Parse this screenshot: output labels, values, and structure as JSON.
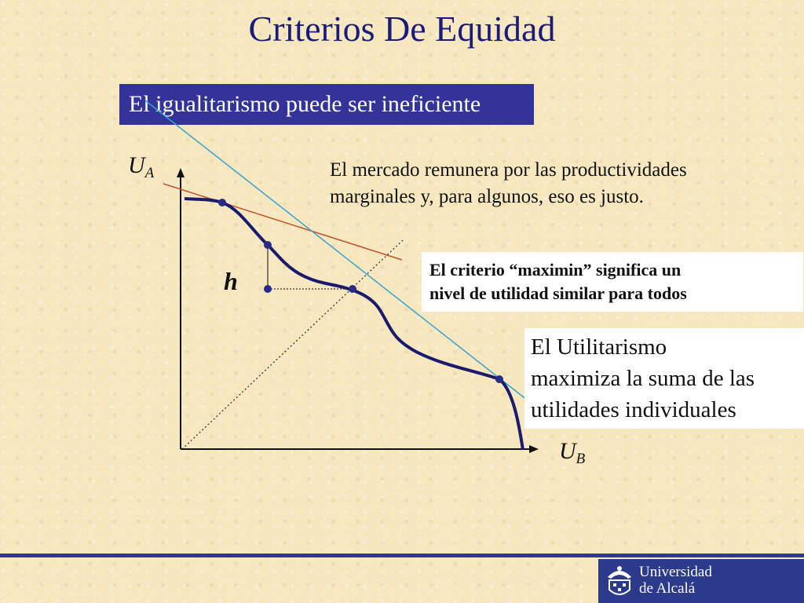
{
  "slide": {
    "title": "Criterios De Equidad",
    "banner": "El igualitarismo puede ser ineficiente",
    "market_text": [
      "El mercado remunera por las productividades",
      "marginales y, para algunos, eso es justo."
    ],
    "maximin_text": [
      "El criterio “maximin” significa un",
      "nivel de utilidad similar para todos"
    ],
    "utilitarian_text": [
      "El Utilitarismo",
      "maximiza la suma de las",
      "utilidades individuales"
    ]
  },
  "diagram": {
    "y_axis": {
      "var": "U",
      "sub": "A"
    },
    "x_axis": {
      "var": "U",
      "sub": "B"
    },
    "h_label": "h",
    "colors": {
      "frontier": "#1a1a6e",
      "market_tangent": "#c0502a",
      "utilitarian_tangent": "#3aa0d0",
      "guides": "#333333",
      "points": "#2a2a8a"
    }
  },
  "footer": {
    "logo_line1": "Universidad",
    "logo_line2": "de Alcalá",
    "logo_icon": "university-crest-icon"
  }
}
